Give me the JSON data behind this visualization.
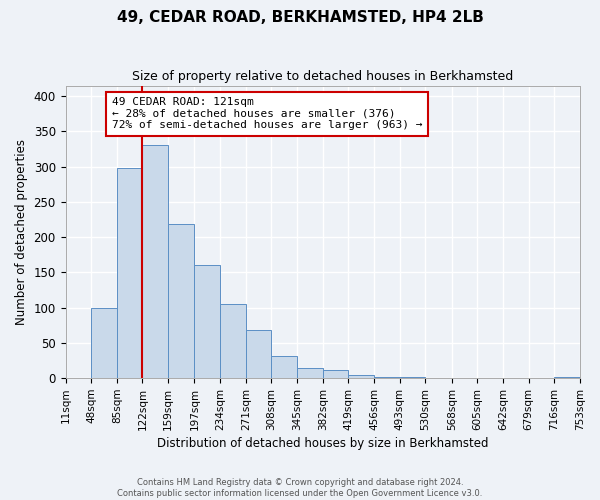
{
  "title": "49, CEDAR ROAD, BERKHAMSTED, HP4 2LB",
  "subtitle": "Size of property relative to detached houses in Berkhamsted",
  "xlabel": "Distribution of detached houses by size in Berkhamsted",
  "ylabel": "Number of detached properties",
  "bin_edges": [
    11,
    48,
    85,
    122,
    159,
    197,
    234,
    271,
    308,
    345,
    382,
    419,
    456,
    493,
    530,
    568,
    605,
    642,
    679,
    716,
    753
  ],
  "bin_labels": [
    "11sqm",
    "48sqm",
    "85sqm",
    "122sqm",
    "159sqm",
    "197sqm",
    "234sqm",
    "271sqm",
    "308sqm",
    "345sqm",
    "382sqm",
    "419sqm",
    "456sqm",
    "493sqm",
    "530sqm",
    "568sqm",
    "605sqm",
    "642sqm",
    "679sqm",
    "716sqm",
    "753sqm"
  ],
  "counts": [
    0,
    99,
    298,
    330,
    218,
    160,
    105,
    68,
    32,
    14,
    11,
    5,
    2,
    2,
    0,
    0,
    0,
    0,
    0,
    2,
    0
  ],
  "bar_color": "#c9d9ea",
  "bar_edge_color": "#5b8fc5",
  "property_line_x": 122,
  "property_line_color": "#cc0000",
  "annotation_text": "49 CEDAR ROAD: 121sqm\n← 28% of detached houses are smaller (376)\n72% of semi-detached houses are larger (963) →",
  "annotation_box_color": "#ffffff",
  "annotation_box_edge": "#cc0000",
  "ylim": [
    0,
    415
  ],
  "yticks": [
    0,
    50,
    100,
    150,
    200,
    250,
    300,
    350,
    400
  ],
  "background_color": "#eef2f7",
  "grid_color": "#ffffff",
  "footer_line1": "Contains HM Land Registry data © Crown copyright and database right 2024.",
  "footer_line2": "Contains public sector information licensed under the Open Government Licence v3.0."
}
